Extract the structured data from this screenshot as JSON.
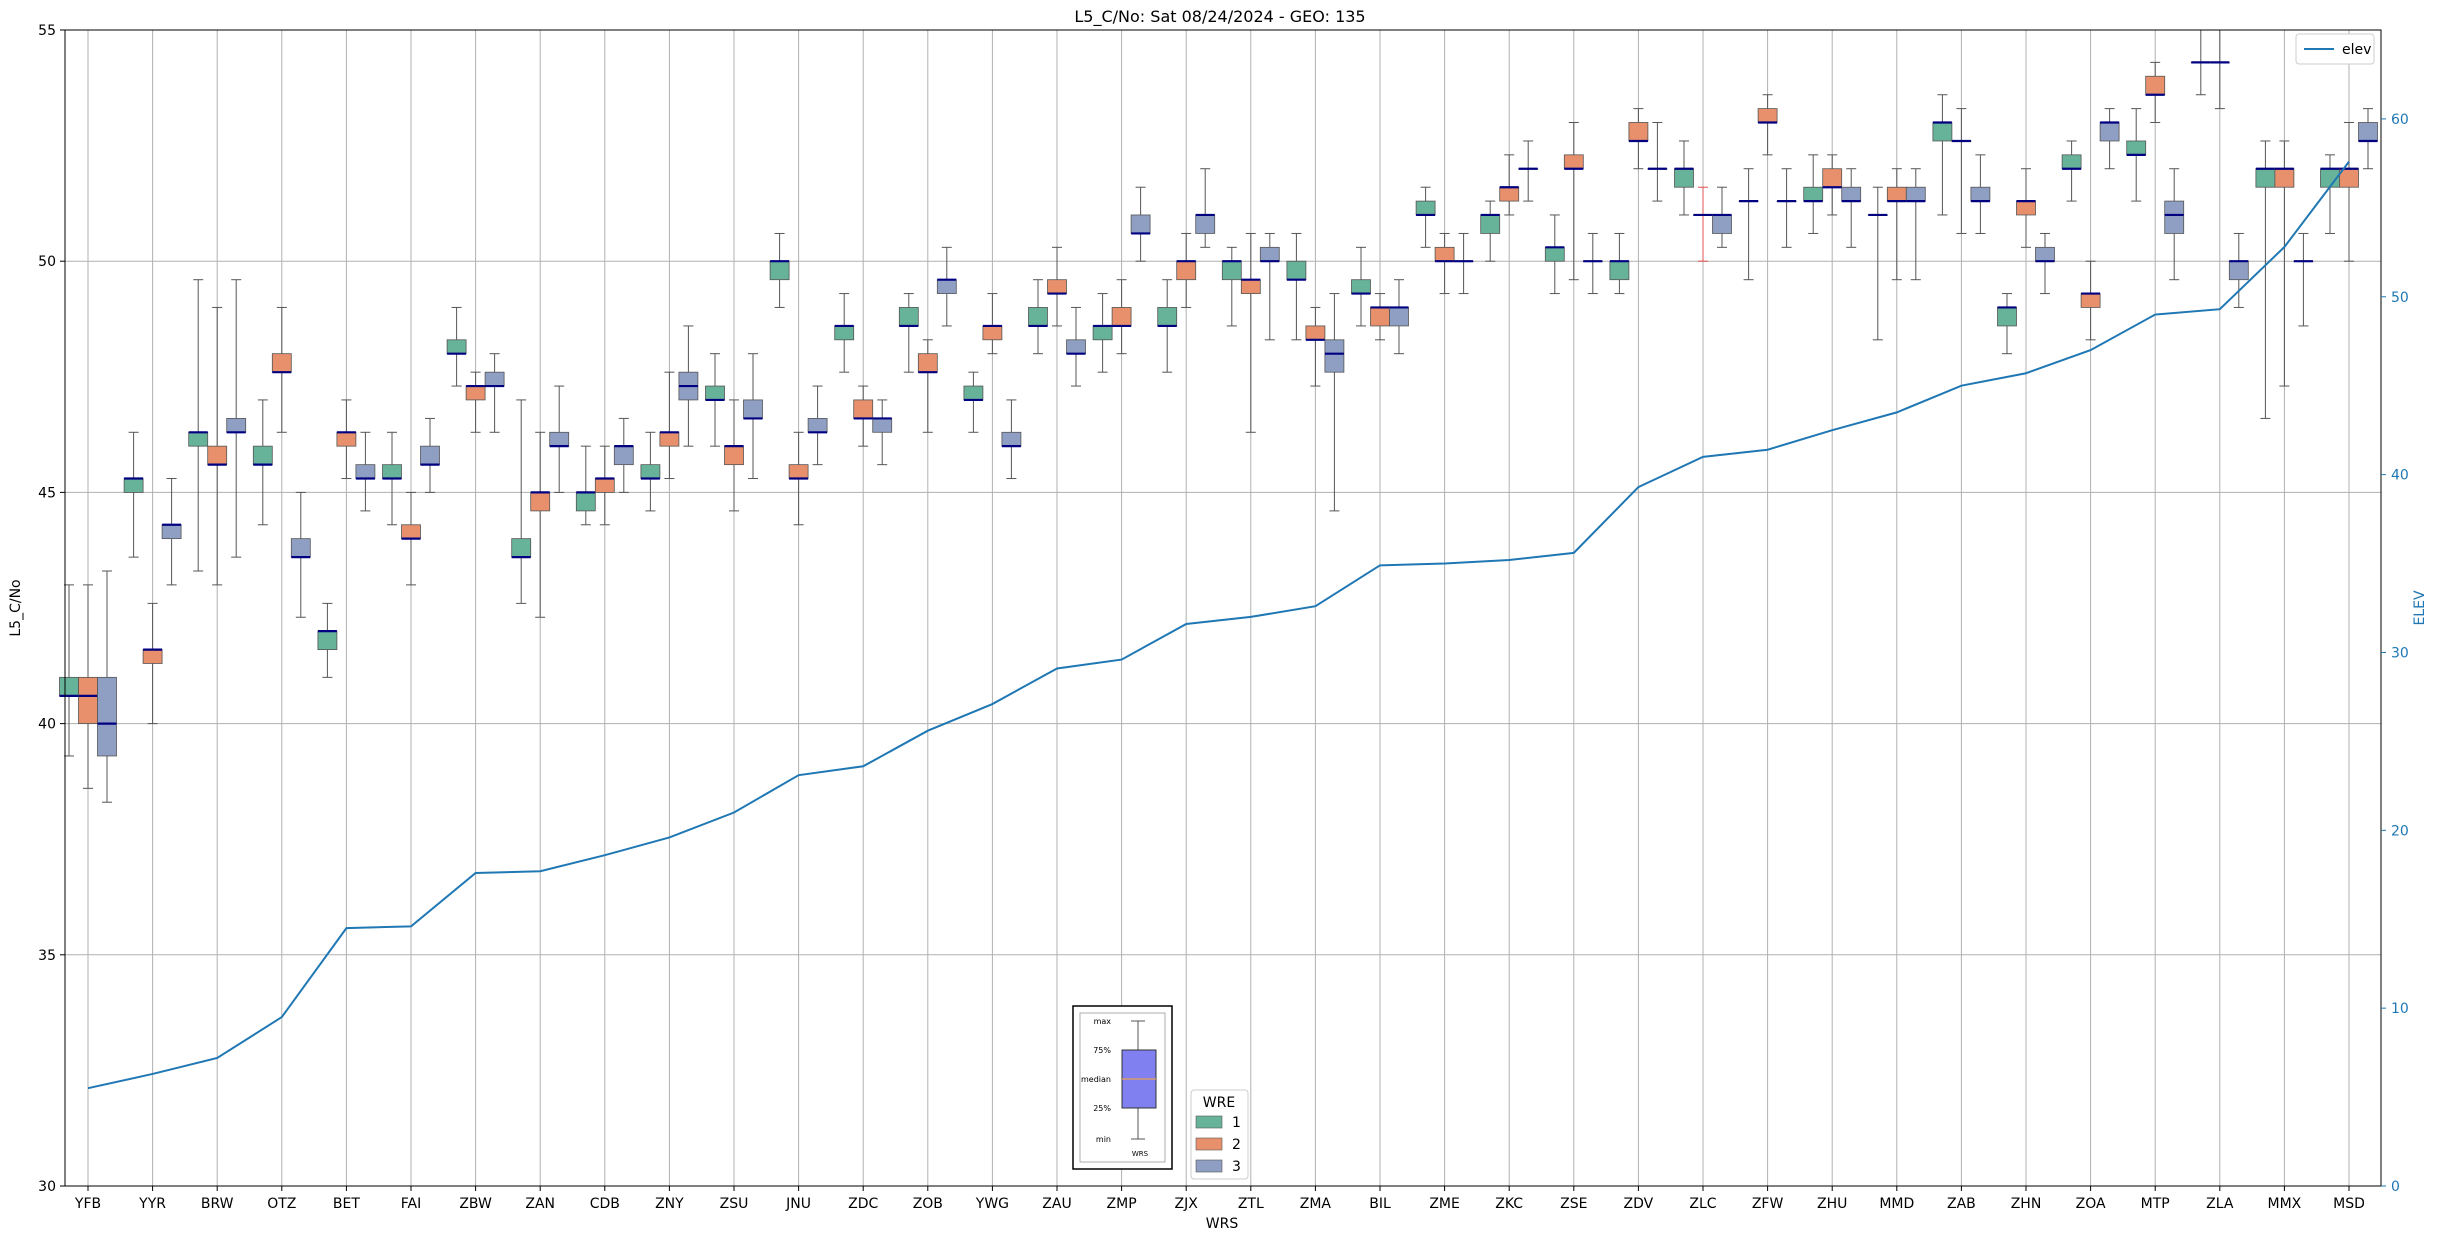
{
  "chart_data": {
    "type": "box",
    "title": "L5_C/No: Sat 08/24/2024 - GEO: 135",
    "xlabel": "WRS",
    "ylabel": "L5_C/No",
    "ylabel_right": "ELEV",
    "ylim": [
      30,
      55
    ],
    "ylim_right": [
      0,
      65
    ],
    "yticks": [
      30,
      35,
      40,
      45,
      50,
      55
    ],
    "yticks_right": [
      0,
      10,
      20,
      30,
      40,
      50,
      60
    ],
    "grid": true,
    "categories": [
      "YFB",
      "YYR",
      "BRW",
      "OTZ",
      "BET",
      "FAI",
      "ZBW",
      "ZAN",
      "CDB",
      "ZNY",
      "ZSU",
      "JNU",
      "ZDC",
      "ZOB",
      "YWG",
      "ZAU",
      "ZMP",
      "ZJX",
      "ZTL",
      "ZMA",
      "BIL",
      "ZME",
      "ZKC",
      "ZSE",
      "ZDV",
      "ZLC",
      "ZFW",
      "ZHU",
      "MMD",
      "ZAB",
      "ZHN",
      "ZOA",
      "MTP",
      "ZLA",
      "MMX",
      "MSD"
    ],
    "legend": {
      "title": "WRE",
      "placement": "lower-center",
      "entries": [
        {
          "name": "1",
          "color": "#66b39a"
        },
        {
          "name": "2",
          "color": "#e8906c"
        },
        {
          "name": "3",
          "color": "#8f9fc4"
        }
      ]
    },
    "line_legend": {
      "name": "elev",
      "placement": "top-right",
      "color": "#1f77b4"
    },
    "box_key": {
      "labels": [
        "max",
        "75%",
        "median",
        "25%",
        "min"
      ],
      "xlabel": "WRS"
    },
    "elev": [
      5.5,
      6.3,
      7.2,
      9.5,
      14.5,
      14.6,
      17.6,
      17.7,
      18.6,
      19.6,
      21.0,
      23.1,
      23.6,
      25.6,
      27.1,
      29.1,
      29.6,
      31.6,
      32.0,
      32.6,
      34.9,
      35.0,
      35.2,
      35.6,
      39.3,
      41.0,
      41.4,
      42.5,
      43.5,
      45.0,
      45.7,
      47.0,
      49.0,
      49.3,
      52.8,
      57.6
    ],
    "boxes": [
      {
        "wrs": "YFB",
        "wre": 1,
        "min": 39.3,
        "q1": 40.6,
        "median": 40.6,
        "q3": 41.0,
        "max": 43.0
      },
      {
        "wrs": "YFB",
        "wre": 2,
        "min": 38.6,
        "q1": 40.0,
        "median": 40.6,
        "q3": 41.0,
        "max": 43.0
      },
      {
        "wrs": "YFB",
        "wre": 3,
        "min": 38.3,
        "q1": 39.3,
        "median": 40.0,
        "q3": 41.0,
        "max": 43.3
      },
      {
        "wrs": "YYR",
        "wre": 1,
        "min": 43.6,
        "q1": 45.0,
        "median": 45.3,
        "q3": 45.3,
        "max": 46.3
      },
      {
        "wrs": "YYR",
        "wre": 2,
        "min": 40.0,
        "q1": 41.3,
        "median": 41.6,
        "q3": 41.6,
        "max": 42.6
      },
      {
        "wrs": "YYR",
        "wre": 3,
        "min": 43.0,
        "q1": 44.0,
        "median": 44.3,
        "q3": 44.3,
        "max": 45.3
      },
      {
        "wrs": "BRW",
        "wre": 1,
        "min": 43.3,
        "q1": 46.0,
        "median": 46.3,
        "q3": 46.3,
        "max": 49.6
      },
      {
        "wrs": "BRW",
        "wre": 2,
        "min": 43.0,
        "q1": 45.6,
        "median": 45.6,
        "q3": 46.0,
        "max": 49.0
      },
      {
        "wrs": "BRW",
        "wre": 3,
        "min": 43.6,
        "q1": 46.3,
        "median": 46.3,
        "q3": 46.6,
        "max": 49.6
      },
      {
        "wrs": "OTZ",
        "wre": 1,
        "min": 44.3,
        "q1": 45.6,
        "median": 45.6,
        "q3": 46.0,
        "max": 47.0
      },
      {
        "wrs": "OTZ",
        "wre": 2,
        "min": 46.3,
        "q1": 47.6,
        "median": 47.6,
        "q3": 48.0,
        "max": 49.0
      },
      {
        "wrs": "OTZ",
        "wre": 3,
        "min": 42.3,
        "q1": 43.6,
        "median": 43.6,
        "q3": 44.0,
        "max": 45.0
      },
      {
        "wrs": "BET",
        "wre": 1,
        "min": 41.0,
        "q1": 41.6,
        "median": 42.0,
        "q3": 42.0,
        "max": 42.6
      },
      {
        "wrs": "BET",
        "wre": 2,
        "min": 45.3,
        "q1": 46.0,
        "median": 46.3,
        "q3": 46.3,
        "max": 47.0
      },
      {
        "wrs": "BET",
        "wre": 3,
        "min": 44.6,
        "q1": 45.3,
        "median": 45.3,
        "q3": 45.6,
        "max": 46.3
      },
      {
        "wrs": "FAI",
        "wre": 1,
        "min": 44.3,
        "q1": 45.3,
        "median": 45.3,
        "q3": 45.6,
        "max": 46.3
      },
      {
        "wrs": "FAI",
        "wre": 2,
        "min": 43.0,
        "q1": 44.0,
        "median": 44.0,
        "q3": 44.3,
        "max": 45.0
      },
      {
        "wrs": "FAI",
        "wre": 3,
        "min": 45.0,
        "q1": 45.6,
        "median": 45.6,
        "q3": 46.0,
        "max": 46.6
      },
      {
        "wrs": "ZBW",
        "wre": 1,
        "min": 47.3,
        "q1": 48.0,
        "median": 48.0,
        "q3": 48.3,
        "max": 49.0
      },
      {
        "wrs": "ZBW",
        "wre": 2,
        "min": 46.3,
        "q1": 47.0,
        "median": 47.3,
        "q3": 47.3,
        "max": 47.6
      },
      {
        "wrs": "ZBW",
        "wre": 3,
        "min": 46.3,
        "q1": 47.3,
        "median": 47.3,
        "q3": 47.6,
        "max": 48.0
      },
      {
        "wrs": "ZAN",
        "wre": 1,
        "min": 42.6,
        "q1": 43.6,
        "median": 43.6,
        "q3": 44.0,
        "max": 47.0
      },
      {
        "wrs": "ZAN",
        "wre": 2,
        "min": 42.3,
        "q1": 44.6,
        "median": 45.0,
        "q3": 45.0,
        "max": 46.3
      },
      {
        "wrs": "ZAN",
        "wre": 3,
        "min": 45.0,
        "q1": 46.0,
        "median": 46.0,
        "q3": 46.3,
        "max": 47.3
      },
      {
        "wrs": "CDB",
        "wre": 1,
        "min": 44.3,
        "q1": 44.6,
        "median": 45.0,
        "q3": 45.0,
        "max": 46.0
      },
      {
        "wrs": "CDB",
        "wre": 2,
        "min": 44.3,
        "q1": 45.0,
        "median": 45.3,
        "q3": 45.3,
        "max": 46.0
      },
      {
        "wrs": "CDB",
        "wre": 3,
        "min": 45.0,
        "q1": 45.6,
        "median": 46.0,
        "q3": 46.0,
        "max": 46.6
      },
      {
        "wrs": "ZNY",
        "wre": 1,
        "min": 44.6,
        "q1": 45.3,
        "median": 45.3,
        "q3": 45.6,
        "max": 46.3
      },
      {
        "wrs": "ZNY",
        "wre": 2,
        "min": 45.3,
        "q1": 46.0,
        "median": 46.3,
        "q3": 46.3,
        "max": 47.6
      },
      {
        "wrs": "ZNY",
        "wre": 3,
        "min": 46.0,
        "q1": 47.0,
        "median": 47.3,
        "q3": 47.6,
        "max": 48.6
      },
      {
        "wrs": "ZSU",
        "wre": 1,
        "min": 46.0,
        "q1": 47.0,
        "median": 47.0,
        "q3": 47.3,
        "max": 48.0
      },
      {
        "wrs": "ZSU",
        "wre": 2,
        "min": 44.6,
        "q1": 45.6,
        "median": 46.0,
        "q3": 46.0,
        "max": 47.0
      },
      {
        "wrs": "ZSU",
        "wre": 3,
        "min": 45.3,
        "q1": 46.6,
        "median": 46.6,
        "q3": 47.0,
        "max": 48.0
      },
      {
        "wrs": "JNU",
        "wre": 1,
        "min": 49.0,
        "q1": 49.6,
        "median": 50.0,
        "q3": 50.0,
        "max": 50.6
      },
      {
        "wrs": "JNU",
        "wre": 2,
        "min": 44.3,
        "q1": 45.3,
        "median": 45.3,
        "q3": 45.6,
        "max": 46.3
      },
      {
        "wrs": "JNU",
        "wre": 3,
        "min": 45.6,
        "q1": 46.3,
        "median": 46.3,
        "q3": 46.6,
        "max": 47.3
      },
      {
        "wrs": "ZDC",
        "wre": 1,
        "min": 47.6,
        "q1": 48.3,
        "median": 48.6,
        "q3": 48.6,
        "max": 49.3
      },
      {
        "wrs": "ZDC",
        "wre": 2,
        "min": 46.0,
        "q1": 46.6,
        "median": 46.6,
        "q3": 47.0,
        "max": 47.3
      },
      {
        "wrs": "ZDC",
        "wre": 3,
        "min": 45.6,
        "q1": 46.3,
        "median": 46.6,
        "q3": 46.6,
        "max": 47.0
      },
      {
        "wrs": "ZOB",
        "wre": 1,
        "min": 47.6,
        "q1": 48.6,
        "median": 48.6,
        "q3": 49.0,
        "max": 49.3
      },
      {
        "wrs": "ZOB",
        "wre": 2,
        "min": 46.3,
        "q1": 47.6,
        "median": 47.6,
        "q3": 48.0,
        "max": 48.3
      },
      {
        "wrs": "ZOB",
        "wre": 3,
        "min": 48.6,
        "q1": 49.3,
        "median": 49.6,
        "q3": 49.6,
        "max": 50.3
      },
      {
        "wrs": "YWG",
        "wre": 1,
        "min": 46.3,
        "q1": 47.0,
        "median": 47.0,
        "q3": 47.3,
        "max": 47.6
      },
      {
        "wrs": "YWG",
        "wre": 2,
        "min": 48.0,
        "q1": 48.3,
        "median": 48.6,
        "q3": 48.6,
        "max": 49.3
      },
      {
        "wrs": "YWG",
        "wre": 3,
        "min": 45.3,
        "q1": 46.0,
        "median": 46.0,
        "q3": 46.3,
        "max": 47.0
      },
      {
        "wrs": "ZAU",
        "wre": 1,
        "min": 48.0,
        "q1": 48.6,
        "median": 48.6,
        "q3": 49.0,
        "max": 49.6
      },
      {
        "wrs": "ZAU",
        "wre": 2,
        "min": 48.6,
        "q1": 49.3,
        "median": 49.3,
        "q3": 49.6,
        "max": 50.3
      },
      {
        "wrs": "ZAU",
        "wre": 3,
        "min": 47.3,
        "q1": 48.0,
        "median": 48.0,
        "q3": 48.3,
        "max": 49.0
      },
      {
        "wrs": "ZMP",
        "wre": 1,
        "min": 47.6,
        "q1": 48.3,
        "median": 48.6,
        "q3": 48.6,
        "max": 49.3
      },
      {
        "wrs": "ZMP",
        "wre": 2,
        "min": 48.0,
        "q1": 48.6,
        "median": 48.6,
        "q3": 49.0,
        "max": 49.6
      },
      {
        "wrs": "ZMP",
        "wre": 3,
        "min": 50.0,
        "q1": 50.6,
        "median": 50.6,
        "q3": 51.0,
        "max": 51.6
      },
      {
        "wrs": "ZJX",
        "wre": 1,
        "min": 47.6,
        "q1": 48.6,
        "median": 48.6,
        "q3": 49.0,
        "max": 49.6
      },
      {
        "wrs": "ZJX",
        "wre": 2,
        "min": 49.0,
        "q1": 49.6,
        "median": 50.0,
        "q3": 50.0,
        "max": 50.6
      },
      {
        "wrs": "ZJX",
        "wre": 3,
        "min": 50.3,
        "q1": 50.6,
        "median": 51.0,
        "q3": 51.0,
        "max": 52.0
      },
      {
        "wrs": "ZTL",
        "wre": 1,
        "min": 48.6,
        "q1": 49.6,
        "median": 50.0,
        "q3": 50.0,
        "max": 50.3
      },
      {
        "wrs": "ZTL",
        "wre": 2,
        "min": 46.3,
        "q1": 49.3,
        "median": 49.6,
        "q3": 49.6,
        "max": 50.6
      },
      {
        "wrs": "ZTL",
        "wre": 3,
        "min": 48.3,
        "q1": 50.0,
        "median": 50.0,
        "q3": 50.3,
        "max": 50.6
      },
      {
        "wrs": "ZMA",
        "wre": 1,
        "min": 48.3,
        "q1": 49.6,
        "median": 49.6,
        "q3": 50.0,
        "max": 50.6
      },
      {
        "wrs": "ZMA",
        "wre": 2,
        "min": 47.3,
        "q1": 48.3,
        "median": 48.3,
        "q3": 48.6,
        "max": 49.0
      },
      {
        "wrs": "ZMA",
        "wre": 3,
        "min": 44.6,
        "q1": 47.6,
        "median": 48.0,
        "q3": 48.3,
        "max": 49.3
      },
      {
        "wrs": "BIL",
        "wre": 1,
        "min": 48.6,
        "q1": 49.3,
        "median": 49.3,
        "q3": 49.6,
        "max": 50.3
      },
      {
        "wrs": "BIL",
        "wre": 2,
        "min": 48.3,
        "q1": 48.6,
        "median": 49.0,
        "q3": 49.0,
        "max": 49.3
      },
      {
        "wrs": "BIL",
        "wre": 3,
        "min": 48.0,
        "q1": 48.6,
        "median": 49.0,
        "q3": 49.0,
        "max": 49.6
      },
      {
        "wrs": "ZME",
        "wre": 1,
        "min": 50.3,
        "q1": 51.0,
        "median": 51.0,
        "q3": 51.3,
        "max": 51.6
      },
      {
        "wrs": "ZME",
        "wre": 2,
        "min": 49.3,
        "q1": 50.0,
        "median": 50.0,
        "q3": 50.3,
        "max": 50.6
      },
      {
        "wrs": "ZME",
        "wre": 3,
        "min": 49.3,
        "q1": 50.0,
        "median": 50.0,
        "q3": 50.0,
        "max": 50.6
      },
      {
        "wrs": "ZKC",
        "wre": 1,
        "min": 50.0,
        "q1": 50.6,
        "median": 51.0,
        "q3": 51.0,
        "max": 51.3
      },
      {
        "wrs": "ZKC",
        "wre": 2,
        "min": 51.0,
        "q1": 51.3,
        "median": 51.6,
        "q3": 51.6,
        "max": 52.3
      },
      {
        "wrs": "ZKC",
        "wre": 3,
        "min": 51.3,
        "q1": 52.0,
        "median": 52.0,
        "q3": 52.0,
        "max": 52.6
      },
      {
        "wrs": "ZSE",
        "wre": 1,
        "min": 49.3,
        "q1": 50.0,
        "median": 50.3,
        "q3": 50.3,
        "max": 51.0
      },
      {
        "wrs": "ZSE",
        "wre": 2,
        "min": 49.6,
        "q1": 52.0,
        "median": 52.0,
        "q3": 52.3,
        "max": 53.0
      },
      {
        "wrs": "ZSE",
        "wre": 3,
        "min": 49.3,
        "q1": 50.0,
        "median": 50.0,
        "q3": 50.0,
        "max": 50.6
      },
      {
        "wrs": "ZDV",
        "wre": 1,
        "min": 49.3,
        "q1": 49.6,
        "median": 50.0,
        "q3": 50.0,
        "max": 50.6
      },
      {
        "wrs": "ZDV",
        "wre": 2,
        "min": 52.0,
        "q1": 52.6,
        "median": 52.6,
        "q3": 53.0,
        "max": 53.3
      },
      {
        "wrs": "ZDV",
        "wre": 3,
        "min": 51.3,
        "q1": 52.0,
        "median": 52.0,
        "q3": 52.0,
        "max": 53.0
      },
      {
        "wrs": "ZLC",
        "wre": 1,
        "min": 51.0,
        "q1": 51.6,
        "median": 52.0,
        "q3": 52.0,
        "max": 52.6
      },
      {
        "wrs": "ZLC",
        "wre": 2,
        "min": 50.0,
        "q1": 51.0,
        "median": 51.0,
        "q3": 51.0,
        "max": 51.6
      },
      {
        "wrs": "ZLC",
        "wre": 3,
        "min": 50.3,
        "q1": 50.6,
        "median": 51.0,
        "q3": 51.0,
        "max": 51.6
      },
      {
        "wrs": "ZFW",
        "wre": 1,
        "min": 49.6,
        "q1": 51.3,
        "median": 51.3,
        "q3": 51.3,
        "max": 52.0
      },
      {
        "wrs": "ZFW",
        "wre": 2,
        "min": 52.3,
        "q1": 53.0,
        "median": 53.0,
        "q3": 53.3,
        "max": 53.6
      },
      {
        "wrs": "ZFW",
        "wre": 3,
        "min": 50.3,
        "q1": 51.3,
        "median": 51.3,
        "q3": 51.3,
        "max": 52.0
      },
      {
        "wrs": "ZHU",
        "wre": 1,
        "min": 50.6,
        "q1": 51.3,
        "median": 51.3,
        "q3": 51.6,
        "max": 52.3
      },
      {
        "wrs": "ZHU",
        "wre": 2,
        "min": 51.0,
        "q1": 51.6,
        "median": 51.6,
        "q3": 52.0,
        "max": 52.3
      },
      {
        "wrs": "ZHU",
        "wre": 3,
        "min": 50.3,
        "q1": 51.3,
        "median": 51.3,
        "q3": 51.6,
        "max": 52.0
      },
      {
        "wrs": "MMD",
        "wre": 1,
        "min": 48.3,
        "q1": 51.0,
        "median": 51.0,
        "q3": 51.0,
        "max": 51.6
      },
      {
        "wrs": "MMD",
        "wre": 2,
        "min": 49.6,
        "q1": 51.3,
        "median": 51.3,
        "q3": 51.6,
        "max": 52.0
      },
      {
        "wrs": "MMD",
        "wre": 3,
        "min": 49.6,
        "q1": 51.3,
        "median": 51.3,
        "q3": 51.6,
        "max": 52.0
      },
      {
        "wrs": "ZAB",
        "wre": 1,
        "min": 51.0,
        "q1": 52.6,
        "median": 53.0,
        "q3": 53.0,
        "max": 53.6
      },
      {
        "wrs": "ZAB",
        "wre": 2,
        "min": 50.6,
        "q1": 52.6,
        "median": 52.6,
        "q3": 52.6,
        "max": 53.3
      },
      {
        "wrs": "ZAB",
        "wre": 3,
        "min": 50.6,
        "q1": 51.3,
        "median": 51.3,
        "q3": 51.6,
        "max": 52.3
      },
      {
        "wrs": "ZHN",
        "wre": 1,
        "min": 48.0,
        "q1": 48.6,
        "median": 49.0,
        "q3": 49.0,
        "max": 49.3
      },
      {
        "wrs": "ZHN",
        "wre": 2,
        "min": 50.3,
        "q1": 51.0,
        "median": 51.3,
        "q3": 51.3,
        "max": 52.0
      },
      {
        "wrs": "ZHN",
        "wre": 3,
        "min": 49.3,
        "q1": 50.0,
        "median": 50.0,
        "q3": 50.3,
        "max": 50.6
      },
      {
        "wrs": "ZOA",
        "wre": 1,
        "min": 51.3,
        "q1": 52.0,
        "median": 52.0,
        "q3": 52.3,
        "max": 52.6
      },
      {
        "wrs": "ZOA",
        "wre": 2,
        "min": 48.3,
        "q1": 49.0,
        "median": 49.3,
        "q3": 49.3,
        "max": 50.0
      },
      {
        "wrs": "ZOA",
        "wre": 3,
        "min": 52.0,
        "q1": 52.6,
        "median": 53.0,
        "q3": 53.0,
        "max": 53.3
      },
      {
        "wrs": "MTP",
        "wre": 1,
        "min": 51.3,
        "q1": 52.3,
        "median": 52.3,
        "q3": 52.6,
        "max": 53.3
      },
      {
        "wrs": "MTP",
        "wre": 2,
        "min": 53.0,
        "q1": 53.6,
        "median": 53.6,
        "q3": 54.0,
        "max": 54.3
      },
      {
        "wrs": "MTP",
        "wre": 3,
        "min": 49.6,
        "q1": 50.6,
        "median": 51.0,
        "q3": 51.3,
        "max": 52.0
      },
      {
        "wrs": "ZLA",
        "wre": 1,
        "min": 53.6,
        "q1": 54.3,
        "median": 54.3,
        "q3": 54.3,
        "max": 55.0
      },
      {
        "wrs": "ZLA",
        "wre": 2,
        "min": 53.3,
        "q1": 54.3,
        "median": 54.3,
        "q3": 54.3,
        "max": 55.0
      },
      {
        "wrs": "ZLA",
        "wre": 3,
        "min": 49.0,
        "q1": 49.6,
        "median": 50.0,
        "q3": 50.0,
        "max": 50.6
      },
      {
        "wrs": "MMX",
        "wre": 1,
        "min": 46.6,
        "q1": 51.6,
        "median": 52.0,
        "q3": 52.0,
        "max": 52.6
      },
      {
        "wrs": "MMX",
        "wre": 2,
        "min": 47.3,
        "q1": 51.6,
        "median": 52.0,
        "q3": 52.0,
        "max": 52.6
      },
      {
        "wrs": "MMX",
        "wre": 3,
        "min": 48.6,
        "q1": 50.0,
        "median": 50.0,
        "q3": 50.0,
        "max": 50.6
      },
      {
        "wrs": "MSD",
        "wre": 1,
        "min": 50.6,
        "q1": 51.6,
        "median": 52.0,
        "q3": 52.0,
        "max": 52.3
      },
      {
        "wrs": "MSD",
        "wre": 2,
        "min": 50.0,
        "q1": 51.6,
        "median": 52.0,
        "q3": 52.0,
        "max": 53.0
      },
      {
        "wrs": "MSD",
        "wre": 3,
        "min": 52.0,
        "q1": 52.6,
        "median": 52.6,
        "q3": 53.0,
        "max": 53.3
      }
    ]
  }
}
